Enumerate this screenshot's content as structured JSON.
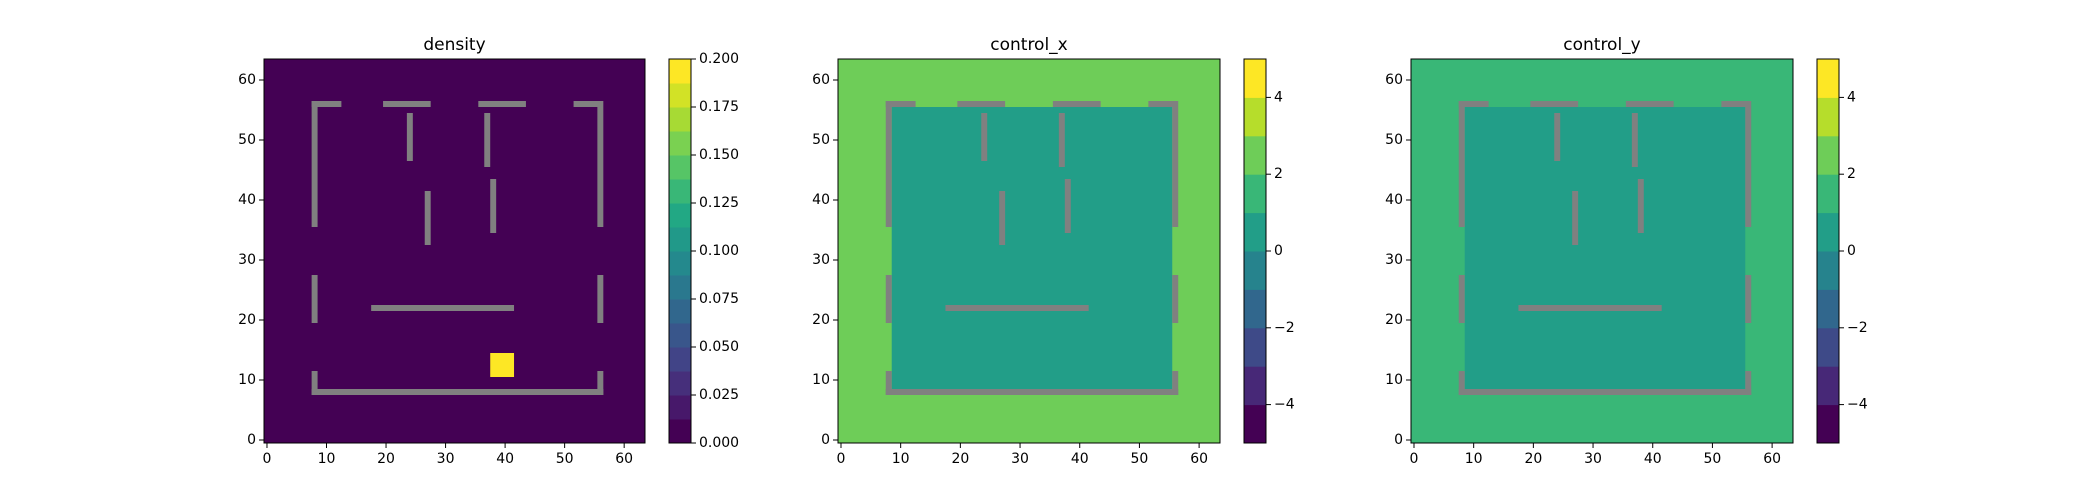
{
  "chart_data": [
    {
      "type": "heatmap",
      "title": "density",
      "colormap": "viridis",
      "xlim": [
        -0.5,
        63.5
      ],
      "ylim": [
        -0.5,
        63.5
      ],
      "xticks": [
        0,
        10,
        20,
        30,
        40,
        50,
        60
      ],
      "yticks": [
        0,
        10,
        20,
        30,
        40,
        50,
        60
      ],
      "regions": [
        {
          "x": [
            -0.5,
            63.5
          ],
          "y": [
            -0.5,
            63.5
          ],
          "value": 0
        },
        {
          "x": [
            37.5,
            41.5
          ],
          "y": [
            10.5,
            14.5
          ],
          "value": 0.2
        }
      ],
      "wall_color": "#808080",
      "walls": [
        [
          7.5,
          8.5,
          35.5,
          56.5
        ],
        [
          7.5,
          12.5,
          55.5,
          56.5
        ],
        [
          19.5,
          27.5,
          55.5,
          56.5
        ],
        [
          35.5,
          43.5,
          55.5,
          56.5
        ],
        [
          51.5,
          56.5,
          55.5,
          56.5
        ],
        [
          55.5,
          56.5,
          35.5,
          55.5
        ],
        [
          23.5,
          24.5,
          46.5,
          54.5
        ],
        [
          36.5,
          37.5,
          45.5,
          54.5
        ],
        [
          26.5,
          27.5,
          32.5,
          41.5
        ],
        [
          37.5,
          38.5,
          34.5,
          43.5
        ],
        [
          7.5,
          8.5,
          19.5,
          27.5
        ],
        [
          55.5,
          56.5,
          19.5,
          27.5
        ],
        [
          17.5,
          41.5,
          21.5,
          22.5
        ],
        [
          7.5,
          8.5,
          7.5,
          11.5
        ],
        [
          7.5,
          56.5,
          7.5,
          8.5
        ],
        [
          55.5,
          56.5,
          7.5,
          11.5
        ]
      ],
      "clim": [
        0,
        0.2
      ],
      "clevels": [
        0,
        0.0125,
        0.025,
        0.0375,
        0.05,
        0.0625,
        0.075,
        0.0875,
        0.1,
        0.1125,
        0.125,
        0.1375,
        0.15,
        0.1625,
        0.175,
        0.1875,
        0.2
      ],
      "cticks": [
        {
          "value": 0,
          "label": "0.000"
        },
        0.025,
        {
          "value": 0.05,
          "label": "0.050"
        },
        0.075,
        {
          "value": 0.1,
          "label": "0.100"
        },
        0.125,
        {
          "value": 0.15,
          "label": "0.150"
        },
        0.175,
        {
          "value": 0.2,
          "label": "0.200"
        }
      ]
    },
    {
      "type": "heatmap",
      "title": "control_x",
      "colormap": "viridis",
      "xlim": [
        -0.5,
        63.5
      ],
      "ylim": [
        -0.5,
        63.5
      ],
      "xticks": [
        0,
        10,
        20,
        30,
        40,
        50,
        60
      ],
      "yticks": [
        0,
        10,
        20,
        30,
        40,
        50,
        60
      ],
      "regions": [
        {
          "x": [
            -0.5,
            63.5
          ],
          "y": [
            -0.5,
            63.5
          ],
          "value": 2.6
        },
        {
          "x": [
            8.5,
            55.5
          ],
          "y": [
            8.5,
            55.5
          ],
          "value": 0.6
        }
      ],
      "wall_color": "#808080",
      "walls": [
        [
          7.5,
          8.5,
          35.5,
          56.5
        ],
        [
          7.5,
          12.5,
          55.5,
          56.5
        ],
        [
          19.5,
          27.5,
          55.5,
          56.5
        ],
        [
          35.5,
          43.5,
          55.5,
          56.5
        ],
        [
          51.5,
          56.5,
          55.5,
          56.5
        ],
        [
          55.5,
          56.5,
          35.5,
          55.5
        ],
        [
          23.5,
          24.5,
          46.5,
          54.5
        ],
        [
          36.5,
          37.5,
          45.5,
          54.5
        ],
        [
          26.5,
          27.5,
          32.5,
          41.5
        ],
        [
          37.5,
          38.5,
          34.5,
          43.5
        ],
        [
          7.5,
          8.5,
          19.5,
          27.5
        ],
        [
          55.5,
          56.5,
          19.5,
          27.5
        ],
        [
          17.5,
          41.5,
          21.5,
          22.5
        ],
        [
          7.5,
          8.5,
          7.5,
          11.5
        ],
        [
          7.5,
          56.5,
          7.5,
          8.5
        ],
        [
          55.5,
          56.5,
          7.5,
          11.5
        ]
      ],
      "clim": [
        -5,
        5
      ],
      "clevels": [
        -5,
        -4,
        -3,
        -2,
        -1,
        0,
        1,
        2,
        3,
        4,
        5
      ],
      "cticks": [
        {
          "value": -4,
          "label": "−4"
        },
        {
          "value": -2,
          "label": "−2"
        },
        0,
        2,
        4
      ]
    },
    {
      "type": "heatmap",
      "title": "control_y",
      "colormap": "viridis",
      "xlim": [
        -0.5,
        63.5
      ],
      "ylim": [
        -0.5,
        63.5
      ],
      "xticks": [
        0,
        10,
        20,
        30,
        40,
        50,
        60
      ],
      "yticks": [
        0,
        10,
        20,
        30,
        40,
        50,
        60
      ],
      "regions": [
        {
          "x": [
            -0.5,
            63.5
          ],
          "y": [
            -0.5,
            63.5
          ],
          "value": 1.6
        },
        {
          "x": [
            8.5,
            55.5
          ],
          "y": [
            8.5,
            55.5
          ],
          "value": 0.6
        }
      ],
      "wall_color": "#808080",
      "walls": [
        [
          7.5,
          8.5,
          35.5,
          56.5
        ],
        [
          7.5,
          12.5,
          55.5,
          56.5
        ],
        [
          19.5,
          27.5,
          55.5,
          56.5
        ],
        [
          35.5,
          43.5,
          55.5,
          56.5
        ],
        [
          51.5,
          56.5,
          55.5,
          56.5
        ],
        [
          55.5,
          56.5,
          35.5,
          55.5
        ],
        [
          23.5,
          24.5,
          46.5,
          54.5
        ],
        [
          36.5,
          37.5,
          45.5,
          54.5
        ],
        [
          26.5,
          27.5,
          32.5,
          41.5
        ],
        [
          37.5,
          38.5,
          34.5,
          43.5
        ],
        [
          7.5,
          8.5,
          19.5,
          27.5
        ],
        [
          55.5,
          56.5,
          19.5,
          27.5
        ],
        [
          17.5,
          41.5,
          21.5,
          22.5
        ],
        [
          7.5,
          8.5,
          7.5,
          11.5
        ],
        [
          7.5,
          56.5,
          7.5,
          8.5
        ],
        [
          55.5,
          56.5,
          7.5,
          11.5
        ]
      ],
      "clim": [
        -5,
        5
      ],
      "clevels": [
        -5,
        -4,
        -3,
        -2,
        -1,
        0,
        1,
        2,
        3,
        4,
        5
      ],
      "cticks": [
        {
          "value": -4,
          "label": "−4"
        },
        {
          "value": -2,
          "label": "−2"
        },
        0,
        2,
        4
      ]
    }
  ]
}
